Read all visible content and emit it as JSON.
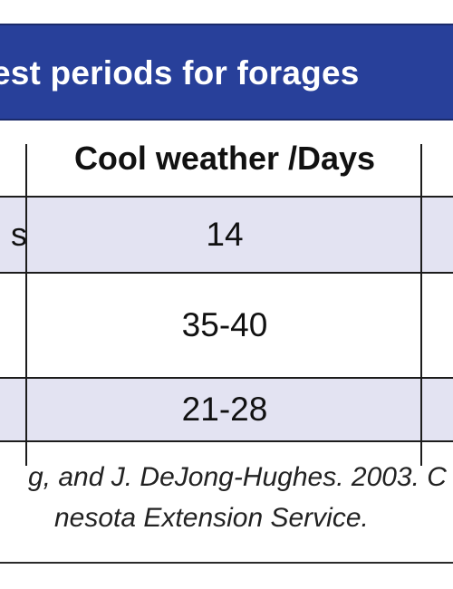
{
  "table": {
    "title": "est periods for forages",
    "header": {
      "left": "",
      "cool_weather": "Cool weather /Days"
    },
    "rows": [
      {
        "left": "s",
        "cool_weather": "14"
      },
      {
        "left": "",
        "cool_weather": "35-40"
      },
      {
        "left": "",
        "cool_weather": "21-28"
      }
    ]
  },
  "footnote": {
    "line1": "g, and J. DeJong-Hughes. 2003. C",
    "line2": "nesota Extension Service."
  },
  "colors": {
    "title_bar": "#28409a",
    "row_shade": "#e3e3f2"
  }
}
